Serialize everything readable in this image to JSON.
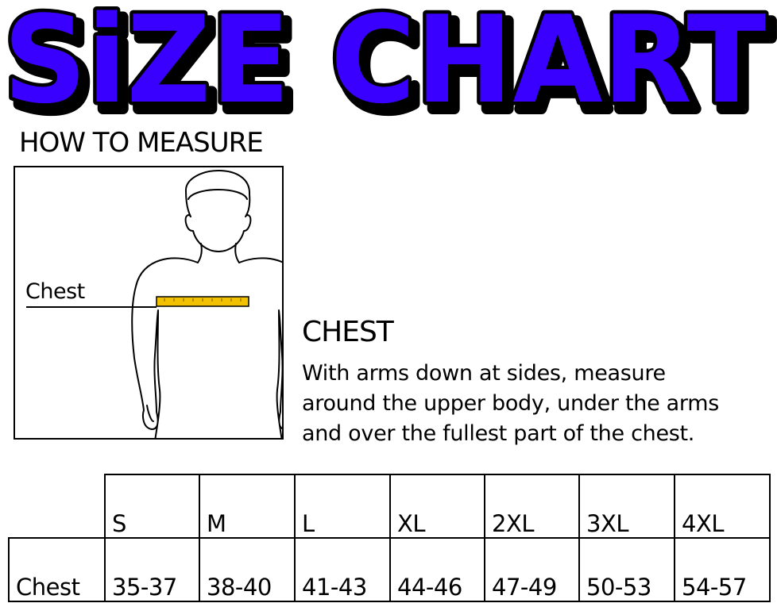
{
  "title": "SiZE CHART",
  "colors": {
    "title_fill": "#3a00ff",
    "title_shadow": "#000000",
    "tape": "#f2c200"
  },
  "how_to_measure": {
    "heading": "HOW TO MEASURE",
    "figure_icon": "body-outline-icon",
    "chest_label": "Chest"
  },
  "chest": {
    "heading": "CHEST",
    "lines": [
      "With arms down at sides, measure",
      "around the upper body, under the arms",
      "and over the fullest part of the chest."
    ]
  },
  "table": {
    "sizes": [
      "S",
      "M",
      "L",
      "XL",
      "2XL",
      "3XL",
      "4XL"
    ],
    "row_label": "Chest",
    "values": [
      "35-37",
      "38-40",
      "41-43",
      "44-46",
      "47-49",
      "50-53",
      "54-57"
    ]
  }
}
